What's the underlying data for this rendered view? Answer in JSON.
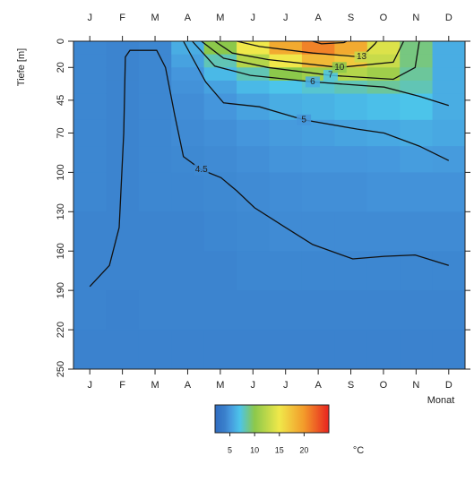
{
  "chart_data": {
    "type": "heatmap",
    "categories": [
      "J",
      "F",
      "M",
      "A",
      "M",
      "J",
      "J",
      "A",
      "S",
      "O",
      "N",
      "D"
    ],
    "xlabel": "Monat",
    "ylabel": "Tiefe [m]",
    "ylim": [
      0,
      250
    ],
    "yticks": [
      0,
      20,
      45,
      70,
      100,
      130,
      160,
      190,
      220,
      250
    ],
    "y_inverted": true,
    "depth_edges": [
      0,
      10,
      20,
      30,
      40,
      60,
      80,
      100,
      130,
      160,
      190,
      220,
      250
    ],
    "values": [
      [
        4.3,
        4.3,
        4.3,
        4.3,
        4.3,
        4.3,
        4.3,
        4.3,
        4.2,
        4.2,
        4.2,
        4.1
      ],
      [
        4.2,
        4.2,
        4.2,
        4.2,
        4.2,
        4.2,
        4.2,
        4.2,
        4.2,
        4.2,
        4.1,
        4.1
      ],
      [
        4.3,
        4.3,
        4.3,
        4.3,
        4.3,
        4.3,
        4.3,
        4.3,
        4.2,
        4.2,
        4.2,
        4.1
      ],
      [
        6,
        5.5,
        5,
        4.8,
        4.6,
        4.5,
        4.4,
        4.3,
        4.2,
        4.2,
        4.2,
        4.1
      ],
      [
        10,
        8,
        6.5,
        5.5,
        5,
        4.7,
        4.5,
        4.4,
        4.3,
        4.2,
        4.2,
        4.1
      ],
      [
        15,
        12,
        8,
        6.5,
        5.5,
        5,
        4.7,
        4.5,
        4.4,
        4.3,
        4.2,
        4.1
      ],
      [
        19,
        15,
        10,
        7,
        6,
        5.2,
        4.9,
        4.6,
        4.5,
        4.3,
        4.2,
        4.1
      ],
      [
        21,
        18,
        11,
        7.5,
        6.2,
        5.4,
        5,
        4.7,
        4.5,
        4.3,
        4.2,
        4.1
      ],
      [
        19,
        17,
        12,
        8,
        6.5,
        5.6,
        5,
        4.7,
        4.5,
        4.3,
        4.2,
        4.1
      ],
      [
        14,
        13,
        11,
        8.5,
        6.8,
        5.8,
        5.1,
        4.8,
        4.5,
        4.3,
        4.2,
        4.1
      ],
      [
        9,
        9,
        8.5,
        8,
        7,
        6,
        5.3,
        4.8,
        4.5,
        4.3,
        4.2,
        4.1
      ],
      [
        6,
        6,
        6,
        6,
        6,
        5.8,
        5.2,
        4.8,
        4.5,
        4.3,
        4.2,
        4.1
      ]
    ],
    "colorscale": [
      [
        2,
        "#2f6cc0"
      ],
      [
        4,
        "#3a80cc"
      ],
      [
        5,
        "#4596dc"
      ],
      [
        7,
        "#4cc4ea"
      ],
      [
        10,
        "#8cc84b"
      ],
      [
        15,
        "#f0e84a"
      ],
      [
        20,
        "#f39a2a"
      ],
      [
        25,
        "#e8231f"
      ]
    ],
    "colorbar_lim": [
      2,
      25
    ],
    "colorbar_ticks": [
      5,
      10,
      15,
      20
    ],
    "colorbar_label": "°C",
    "contours": [
      {
        "level": 4.5,
        "label": "4.5",
        "x": [
          0,
          0.6,
          0.9,
          1.04,
          1.09,
          1.23,
          2.05,
          2.32,
          2.6,
          2.87,
          3.42,
          4.02,
          4.5,
          5.05,
          6.0,
          6.83,
          8.06,
          9.02,
          9.97,
          11.0
        ],
        "y": [
          187,
          171,
          142,
          70,
          12,
          7,
          7,
          20,
          56,
          88,
          98,
          104,
          114,
          127,
          142,
          155,
          166,
          164,
          163,
          171
        ]
      },
      {
        "level": 5,
        "x": [
          2.87,
          3.55,
          4.1,
          5.2,
          6.56,
          8.2,
          9.02,
          10.1,
          11.0
        ],
        "y": [
          0,
          31,
          47,
          50,
          60,
          67,
          70,
          80,
          91
        ]
      },
      {
        "level": 6,
        "x": [
          3.14,
          3.83,
          4.92,
          6.83,
          9.02,
          10.1,
          11.0
        ],
        "y": [
          0,
          19,
          26,
          31,
          35,
          42,
          49
        ]
      },
      {
        "level": 7,
        "x": [
          3.42,
          4.1,
          5.46,
          7.38,
          9.3,
          9.97,
          10.1
        ],
        "y": [
          0,
          13,
          20,
          26,
          29,
          20,
          0
        ]
      },
      {
        "level": 10,
        "x": [
          3.83,
          4.37,
          5.46,
          7.65,
          9.3,
          9.62
        ],
        "y": [
          0,
          9,
          14,
          20,
          16,
          0
        ]
      },
      {
        "level": 13,
        "x": [
          4.51,
          5.2,
          6.83,
          8.33,
          8.74,
          8.8
        ],
        "y": [
          0,
          4,
          9,
          12,
          2,
          0
        ]
      },
      {
        "level": 15,
        "x": [
          6.83,
          7.1,
          7.79,
          7.87
        ],
        "y": [
          0,
          2,
          1,
          0
        ]
      }
    ]
  }
}
